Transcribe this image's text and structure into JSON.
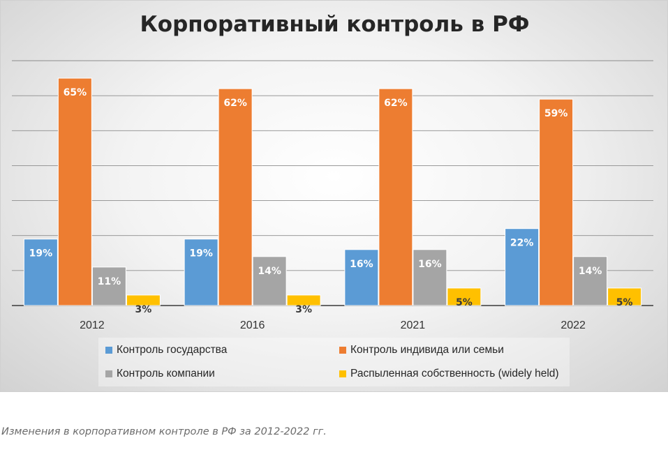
{
  "chart_data": {
    "type": "bar",
    "title": "Корпоративный контроль в РФ",
    "categories": [
      "2012",
      "2016",
      "2021",
      "2022"
    ],
    "series": [
      {
        "name": "Контроль государства",
        "values": [
          19,
          19,
          16,
          22
        ],
        "labels": [
          "19%",
          "19%",
          "16%",
          "22%"
        ],
        "color": "#5b9bd5"
      },
      {
        "name": "Контроль индивида или семьи",
        "values": [
          65,
          62,
          62,
          59
        ],
        "labels": [
          "65%",
          "62%",
          "62%",
          "59%"
        ],
        "color": "#ed7d31"
      },
      {
        "name": "Контроль компании",
        "values": [
          11,
          14,
          16,
          14
        ],
        "labels": [
          "11%",
          "14%",
          "16%",
          "14%"
        ],
        "color": "#a5a5a5"
      },
      {
        "name": "Распыленная собственность (widely held)",
        "values": [
          3,
          3,
          5,
          5
        ],
        "labels": [
          "3%",
          "3%",
          "5%",
          "5%"
        ],
        "color": "#ffc000"
      }
    ],
    "ylim": [
      0,
      70
    ],
    "grid": true,
    "legend_position": "bottom"
  },
  "caption": "Изменения в корпоративном контроле в РФ за 2012-2022 гг."
}
